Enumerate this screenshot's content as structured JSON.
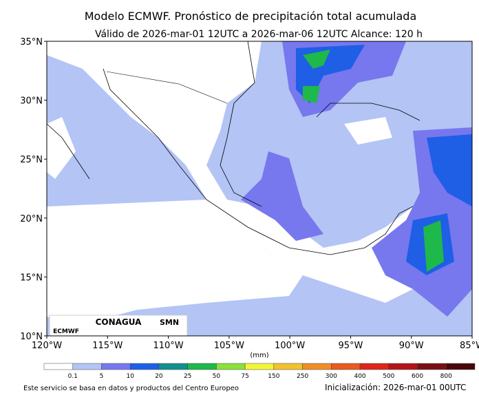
{
  "header": {
    "title": "Modelo ECMWF. Pronóstico de precipitación total acumulada",
    "subtitle": "Válido de 2026-mar-01 12UTC a 2026-mar-06 12UTC   Alcance: 120 h"
  },
  "map": {
    "lat_labels": [
      "35°N",
      "30°N",
      "25°N",
      "20°N",
      "15°N",
      "10°N"
    ],
    "lon_labels": [
      "120°W",
      "115°W",
      "110°W",
      "105°W",
      "100°W",
      "95°W",
      "90°W",
      "85°W"
    ],
    "logos": [
      "ECMWF",
      "CONAGUA",
      "SMN"
    ]
  },
  "colorbar": {
    "unit": "(mm)",
    "labels": [
      "0.1",
      "5",
      "10",
      "20",
      "25",
      "50",
      "75",
      "150",
      "250",
      "300",
      "400",
      "500",
      "600",
      "800"
    ],
    "colors": [
      "#ffffff",
      "#b3c4f5",
      "#7777ee",
      "#1e5fe6",
      "#13908e",
      "#1fb84a",
      "#8be03c",
      "#f3f53a",
      "#f2c22c",
      "#ef8e26",
      "#ea5a1e",
      "#e0231a",
      "#b5131a",
      "#7a0f12",
      "#4a070a"
    ]
  },
  "footer": {
    "left": "Este servicio se basa en datos y productos del Centro Europeo",
    "right": "Inicialización: 2026-mar-01 00UTC"
  }
}
